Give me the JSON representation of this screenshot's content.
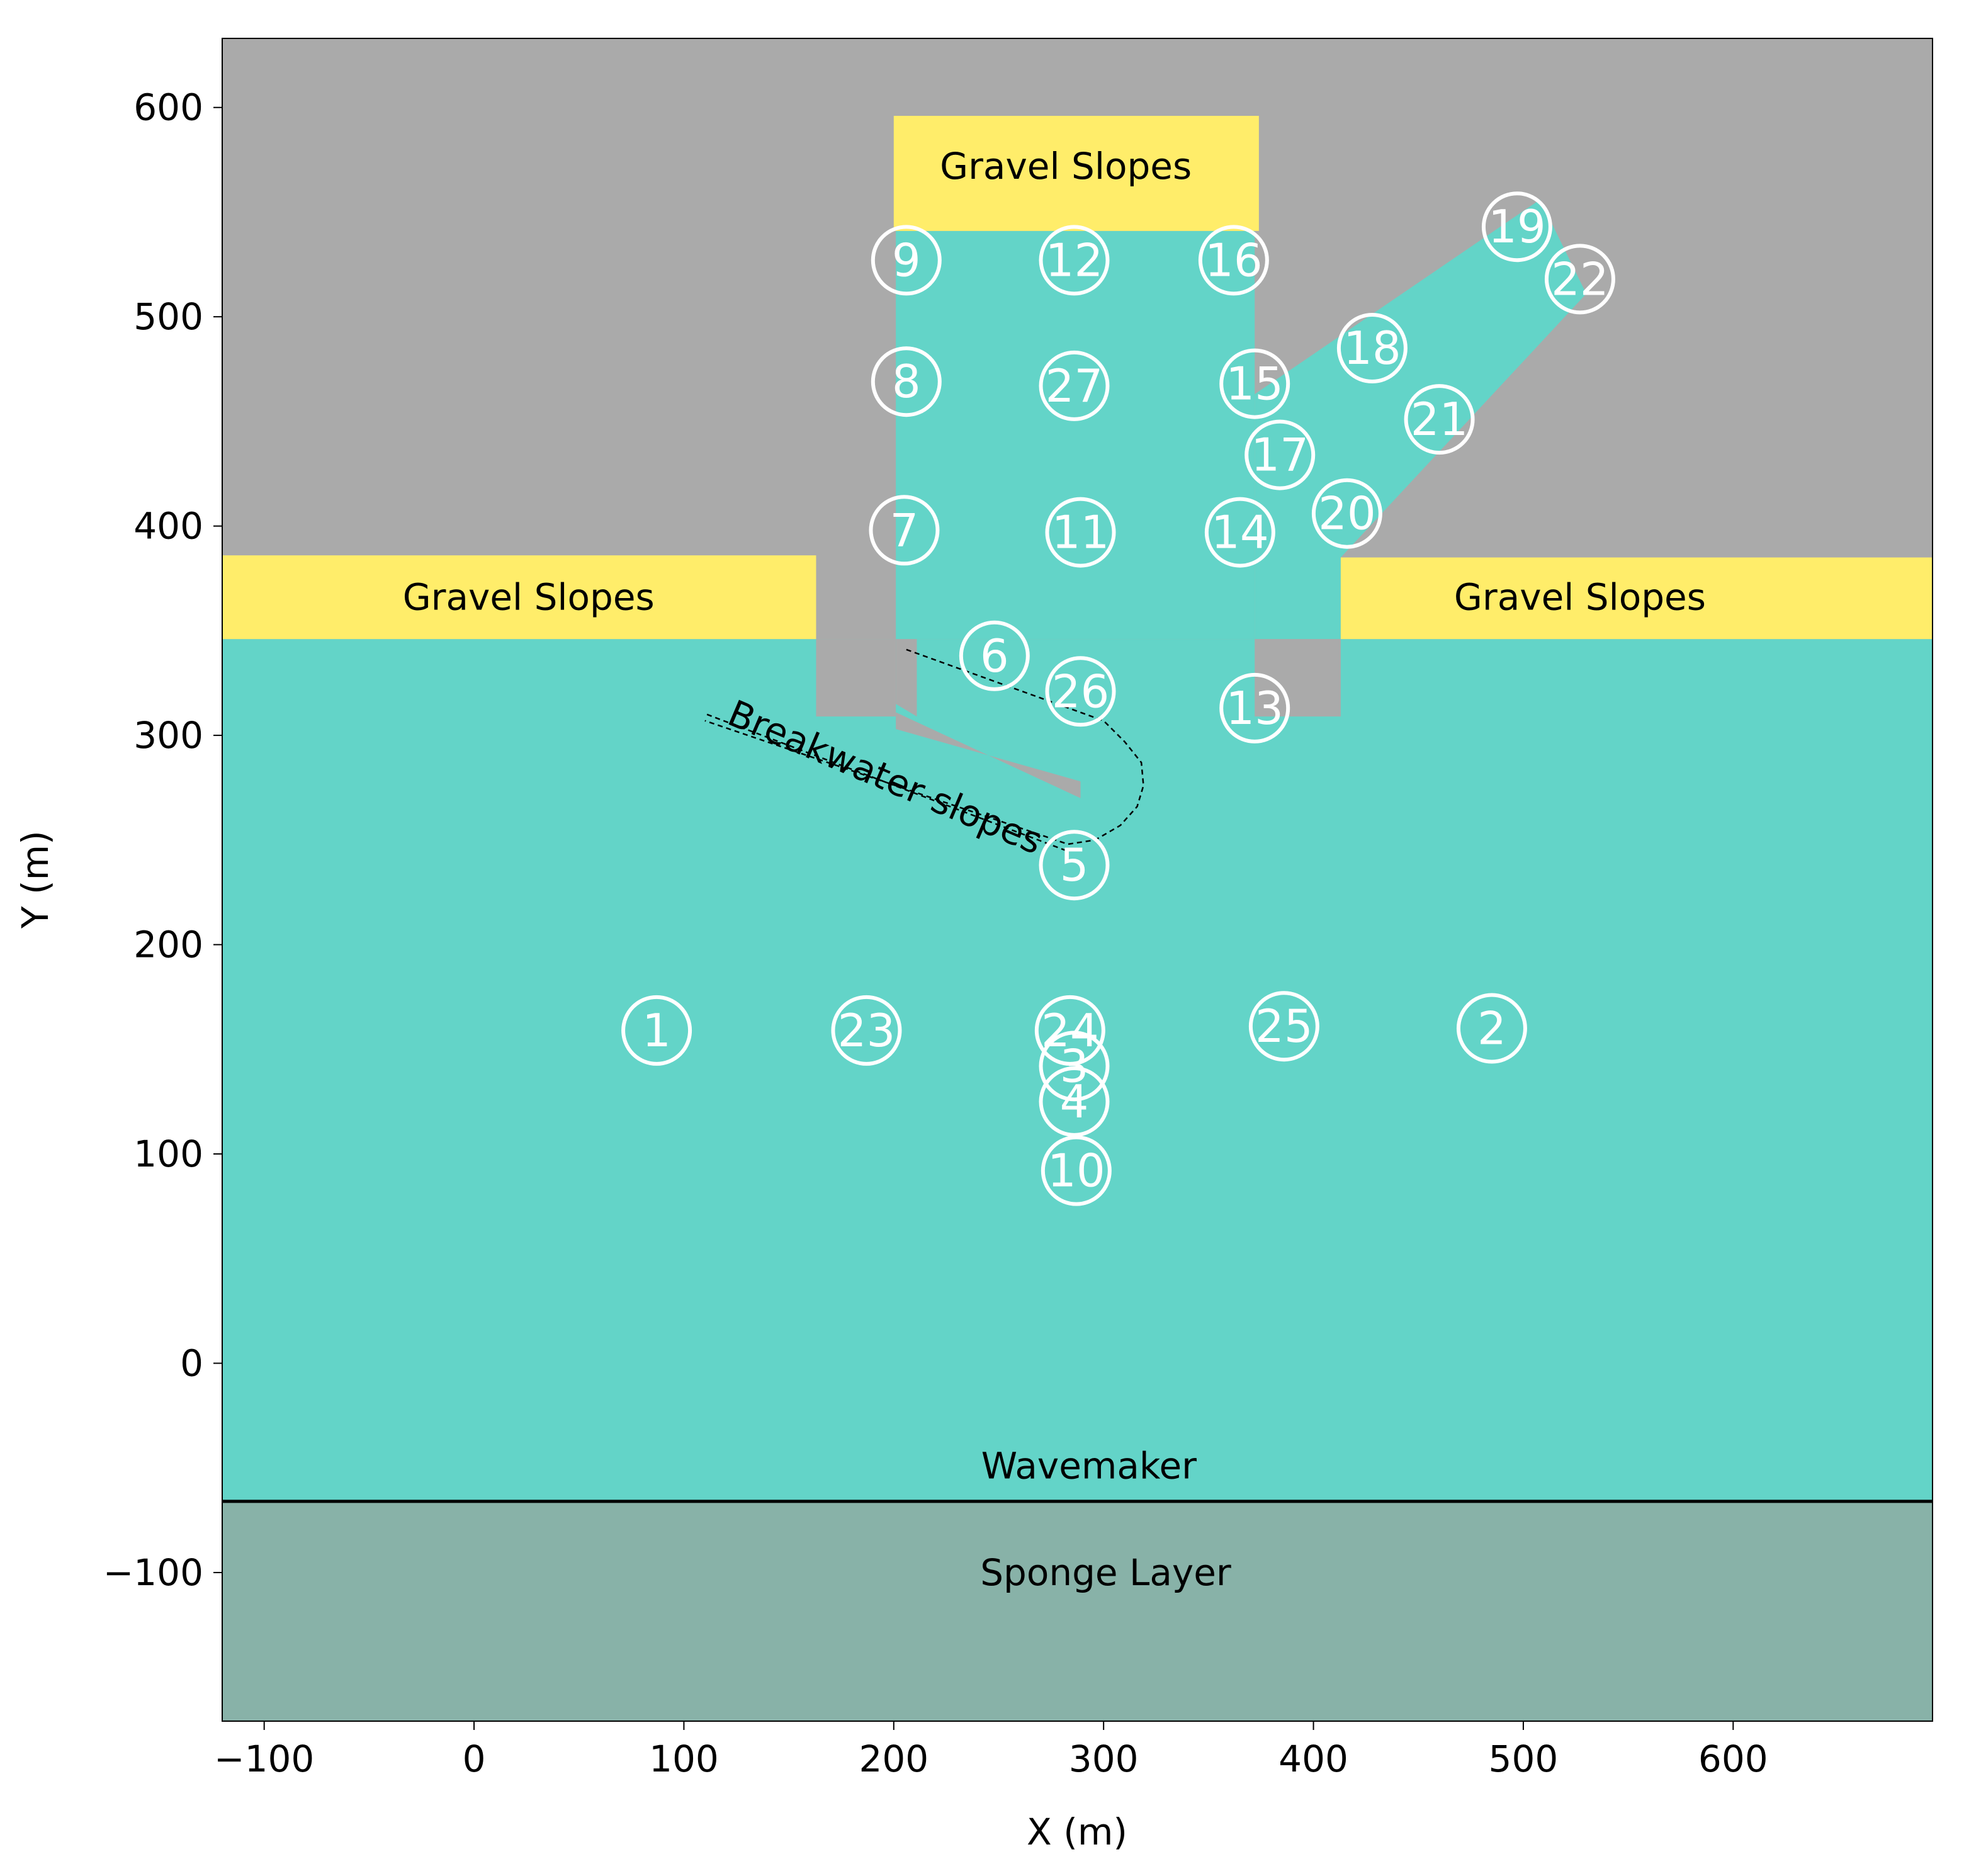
{
  "chart_data": {
    "type": "scatter",
    "title": "",
    "xlabel": "X (m)",
    "ylabel": "Y (m)",
    "xlim": [
      -120,
      695
    ],
    "ylim": [
      -171,
      633
    ],
    "xticks": [
      -100,
      0,
      100,
      200,
      300,
      400,
      500,
      600
    ],
    "yticks": [
      -100,
      0,
      100,
      200,
      300,
      400,
      500,
      600
    ],
    "xtick_labels": [
      "−100",
      "0",
      "100",
      "200",
      "300",
      "400",
      "500",
      "600"
    ],
    "ytick_labels": [
      "−100",
      "0",
      "100",
      "200",
      "300",
      "400",
      "500",
      "600"
    ],
    "grid": false,
    "colors": {
      "land": "#aaaaaa",
      "water": "#63d4c8",
      "gravel": "#ffed6a",
      "sponge": "#88b2a8",
      "gauge": "#ffffff",
      "wavemaker": "#000000"
    },
    "regions": {
      "gravel_left": {
        "label": "Gravel Slopes",
        "x": [
          -120,
          163
        ],
        "y": [
          346,
          386
        ]
      },
      "gravel_right": {
        "label": "Gravel Slopes",
        "x": [
          413,
          695
        ],
        "y": [
          346,
          385
        ]
      },
      "gravel_top": {
        "label": "Gravel Slopes",
        "x": [
          200,
          374
        ],
        "y": [
          541,
          596
        ]
      },
      "sponge": {
        "label": "Sponge Layer",
        "y": [
          -171,
          -66
        ]
      },
      "wavemaker": {
        "label": "Wavemaker",
        "y": -66
      },
      "breakwater_label": "Breakwater slopes"
    },
    "gauges": [
      {
        "id": "1",
        "x": 87,
        "y": 159
      },
      {
        "id": "2",
        "x": 485,
        "y": 160
      },
      {
        "id": "3",
        "x": 286,
        "y": 142
      },
      {
        "id": "4",
        "x": 286,
        "y": 125
      },
      {
        "id": "5",
        "x": 286,
        "y": 238
      },
      {
        "id": "6",
        "x": 248,
        "y": 338
      },
      {
        "id": "7",
        "x": 205,
        "y": 398
      },
      {
        "id": "8",
        "x": 206,
        "y": 469
      },
      {
        "id": "9",
        "x": 206,
        "y": 527
      },
      {
        "id": "10",
        "x": 287,
        "y": 92
      },
      {
        "id": "11",
        "x": 289,
        "y": 397
      },
      {
        "id": "12",
        "x": 286,
        "y": 527
      },
      {
        "id": "13",
        "x": 372,
        "y": 313
      },
      {
        "id": "14",
        "x": 365,
        "y": 397
      },
      {
        "id": "15",
        "x": 372,
        "y": 468
      },
      {
        "id": "16",
        "x": 362,
        "y": 527
      },
      {
        "id": "17",
        "x": 384,
        "y": 434
      },
      {
        "id": "18",
        "x": 428,
        "y": 485
      },
      {
        "id": "19",
        "x": 497,
        "y": 543
      },
      {
        "id": "20",
        "x": 416,
        "y": 406
      },
      {
        "id": "21",
        "x": 460,
        "y": 451
      },
      {
        "id": "22",
        "x": 527,
        "y": 518
      },
      {
        "id": "23",
        "x": 187,
        "y": 159
      },
      {
        "id": "24",
        "x": 284,
        "y": 159
      },
      {
        "id": "25",
        "x": 386,
        "y": 161
      },
      {
        "id": "26",
        "x": 289,
        "y": 321
      },
      {
        "id": "27",
        "x": 286,
        "y": 467
      }
    ]
  }
}
